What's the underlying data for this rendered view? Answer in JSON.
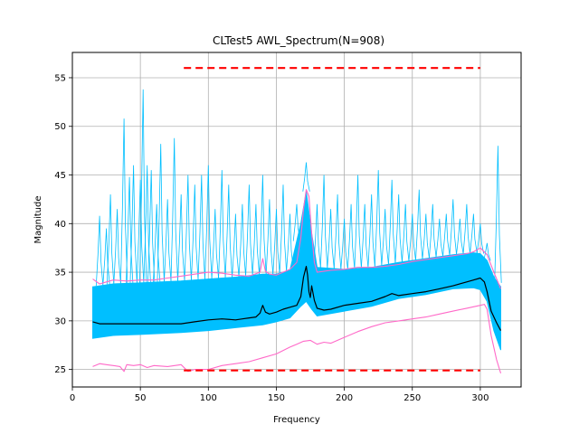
{
  "chart_data": {
    "type": "line",
    "title": "CLTest5 AWL_Spectrum(N=908)",
    "xlabel": "Frequency",
    "ylabel": "Magnitude",
    "xlim": [
      0,
      330
    ],
    "ylim": [
      23.2,
      57.6
    ],
    "xticks": [
      0,
      50,
      100,
      150,
      200,
      250,
      300
    ],
    "yticks": [
      25,
      30,
      35,
      40,
      45,
      50,
      55
    ],
    "grid": true,
    "colors": {
      "traces": "#00bfff",
      "mean": "#000000",
      "envelope": "#ff69c8",
      "limits": "#ff0000",
      "grid": "#b0b0b0"
    },
    "band": {
      "x": [
        15,
        30,
        50,
        80,
        100,
        120,
        140,
        150,
        160,
        168,
        172,
        176,
        180,
        200,
        220,
        240,
        260,
        280,
        295,
        300,
        305,
        310,
        315
      ],
      "lower": [
        28.2,
        28.5,
        28.6,
        28.8,
        29.0,
        29.3,
        29.6,
        29.9,
        30.3,
        31.5,
        32.0,
        31.2,
        30.5,
        31.0,
        31.5,
        32.3,
        32.7,
        33.3,
        33.4,
        33.2,
        32.0,
        29.0,
        27.0
      ],
      "upper": [
        33.5,
        33.8,
        33.9,
        34.1,
        34.3,
        34.5,
        34.8,
        34.8,
        35.2,
        40.0,
        43.3,
        39.0,
        35.5,
        35.3,
        35.5,
        36.0,
        36.4,
        36.8,
        37.0,
        36.9,
        36.2,
        34.5,
        33.5
      ]
    },
    "series": [
      {
        "key": "mean",
        "x": [
          15,
          20,
          30,
          50,
          70,
          80,
          90,
          100,
          110,
          120,
          125,
          130,
          135,
          138,
          140,
          142,
          145,
          150,
          155,
          160,
          165,
          168,
          170,
          172,
          173,
          174,
          175,
          176,
          178,
          180,
          185,
          190,
          200,
          210,
          220,
          230,
          235,
          240,
          250,
          260,
          270,
          280,
          290,
          295,
          300,
          303,
          305,
          308,
          312,
          315
        ],
        "y": [
          29.9,
          29.7,
          29.7,
          29.7,
          29.7,
          29.7,
          29.9,
          30.1,
          30.2,
          30.1,
          30.2,
          30.3,
          30.4,
          30.8,
          31.6,
          30.9,
          30.7,
          30.9,
          31.2,
          31.4,
          31.6,
          32.5,
          34.5,
          35.6,
          34.7,
          33.0,
          32.4,
          33.6,
          32.1,
          31.3,
          31.1,
          31.2,
          31.6,
          31.8,
          32.0,
          32.5,
          32.8,
          32.6,
          32.8,
          33.0,
          33.3,
          33.6,
          34.0,
          34.2,
          34.4,
          34.0,
          33.0,
          31.0,
          29.8,
          29.0
        ]
      },
      {
        "key": "upper-envelope",
        "x": [
          15,
          20,
          25,
          30,
          40,
          50,
          60,
          70,
          80,
          90,
          100,
          110,
          120,
          130,
          138,
          140,
          142,
          145,
          150,
          160,
          165,
          168,
          170,
          172,
          174,
          176,
          178,
          180,
          190,
          200,
          210,
          220,
          230,
          240,
          250,
          260,
          270,
          280,
          290,
          295,
          300,
          305,
          310,
          315
        ],
        "y": [
          34.3,
          33.8,
          34.0,
          34.2,
          34.1,
          34.2,
          34.2,
          34.4,
          34.6,
          34.8,
          35.0,
          34.9,
          34.7,
          34.6,
          35.0,
          36.4,
          35.1,
          34.8,
          34.7,
          35.3,
          36.0,
          38.5,
          41.5,
          43.5,
          42.8,
          39.0,
          36.0,
          35.0,
          35.2,
          35.3,
          35.5,
          35.5,
          35.6,
          35.8,
          36.1,
          36.3,
          36.5,
          36.7,
          36.9,
          37.1,
          37.5,
          36.8,
          35.0,
          33.3
        ]
      },
      {
        "key": "lower-envelope",
        "x": [
          15,
          20,
          25,
          30,
          35,
          38,
          40,
          45,
          50,
          55,
          60,
          70,
          80,
          85,
          90,
          100,
          110,
          120,
          130,
          140,
          150,
          160,
          165,
          170,
          175,
          180,
          185,
          190,
          200,
          210,
          220,
          230,
          240,
          250,
          260,
          270,
          280,
          290,
          300,
          303,
          305,
          308,
          312,
          315
        ],
        "y": [
          25.3,
          25.6,
          25.5,
          25.4,
          25.3,
          24.8,
          25.5,
          25.4,
          25.5,
          25.2,
          25.4,
          25.3,
          25.5,
          24.8,
          25.0,
          25.0,
          25.4,
          25.6,
          25.8,
          26.2,
          26.6,
          27.3,
          27.6,
          27.9,
          28.0,
          27.6,
          27.8,
          27.7,
          28.3,
          28.9,
          29.4,
          29.8,
          30.0,
          30.2,
          30.4,
          30.7,
          31.0,
          31.3,
          31.6,
          31.7,
          31.2,
          28.5,
          26.0,
          24.6
        ]
      },
      {
        "key": "upper-limit",
        "x": [
          82,
          300
        ],
        "y": [
          56.0,
          56.0
        ]
      },
      {
        "key": "lower-limit",
        "x": [
          82,
          300
        ],
        "y": [
          24.9,
          24.9
        ]
      }
    ],
    "spikes": {
      "x": [
        20,
        25,
        28,
        33,
        38,
        42,
        45,
        50,
        52,
        55,
        58,
        62,
        65,
        70,
        75,
        80,
        85,
        90,
        95,
        100,
        105,
        110,
        115,
        120,
        125,
        130,
        135,
        140,
        145,
        150,
        155,
        160,
        165,
        172,
        180,
        185,
        190,
        195,
        200,
        205,
        210,
        215,
        220,
        225,
        230,
        235,
        240,
        245,
        250,
        255,
        260,
        265,
        270,
        275,
        280,
        285,
        290,
        295,
        300,
        305,
        313
      ],
      "y": [
        40.8,
        39.5,
        43.0,
        41.5,
        50.8,
        44.8,
        46.0,
        44.5,
        53.8,
        46.0,
        45.5,
        42.0,
        48.2,
        42.5,
        48.8,
        43.0,
        45.0,
        44.0,
        45.0,
        46.0,
        41.5,
        45.5,
        44.0,
        41.0,
        42.0,
        44.0,
        42.0,
        45.0,
        42.5,
        41.5,
        44.0,
        41.0,
        42.0,
        46.3,
        42.0,
        45.0,
        41.5,
        43.0,
        40.5,
        42.0,
        45.0,
        42.0,
        43.0,
        45.5,
        41.5,
        44.5,
        43.0,
        42.0,
        41.0,
        43.5,
        41.0,
        42.0,
        40.5,
        41.0,
        42.5,
        40.5,
        42.0,
        41.0,
        40.0,
        38.0,
        48.0
      ]
    }
  }
}
